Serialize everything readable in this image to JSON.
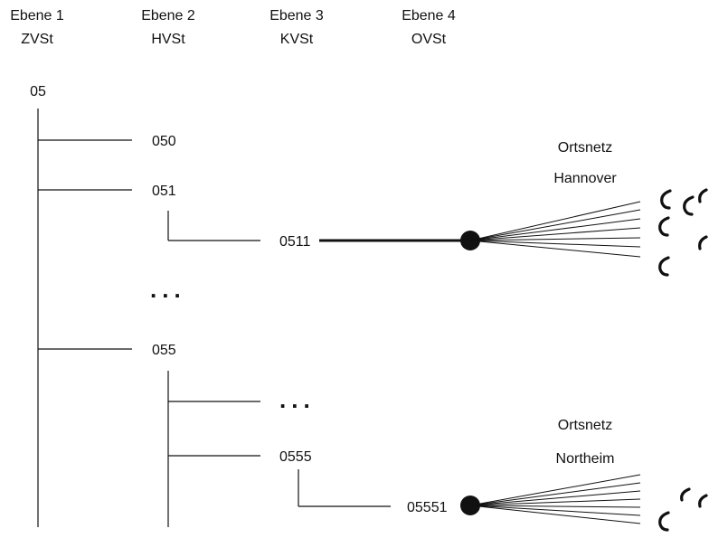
{
  "header": {
    "levels": [
      {
        "title": "Ebene 1",
        "subtitle": "ZVSt"
      },
      {
        "title": "Ebene 2",
        "subtitle": "HVSt"
      },
      {
        "title": "Ebene 3",
        "subtitle": "KVSt"
      },
      {
        "title": "Ebene 4",
        "subtitle": "OVSt"
      }
    ]
  },
  "tree": {
    "root": "05",
    "level2": [
      "050",
      "051",
      "055"
    ],
    "level3": [
      "0511",
      "0555"
    ],
    "level4": [
      "05551"
    ],
    "ellipsis": "..."
  },
  "local_networks": [
    {
      "label_line1": "Ortsnetz",
      "label_line2": "Hannover"
    },
    {
      "label_line1": "Ortsnetz",
      "label_line2": "Northeim"
    }
  ],
  "icons": {
    "phone": "telephone-handset-icon",
    "node": "exchange-node-icon"
  },
  "colors": {
    "ink": "#111111",
    "background": "#ffffff"
  }
}
